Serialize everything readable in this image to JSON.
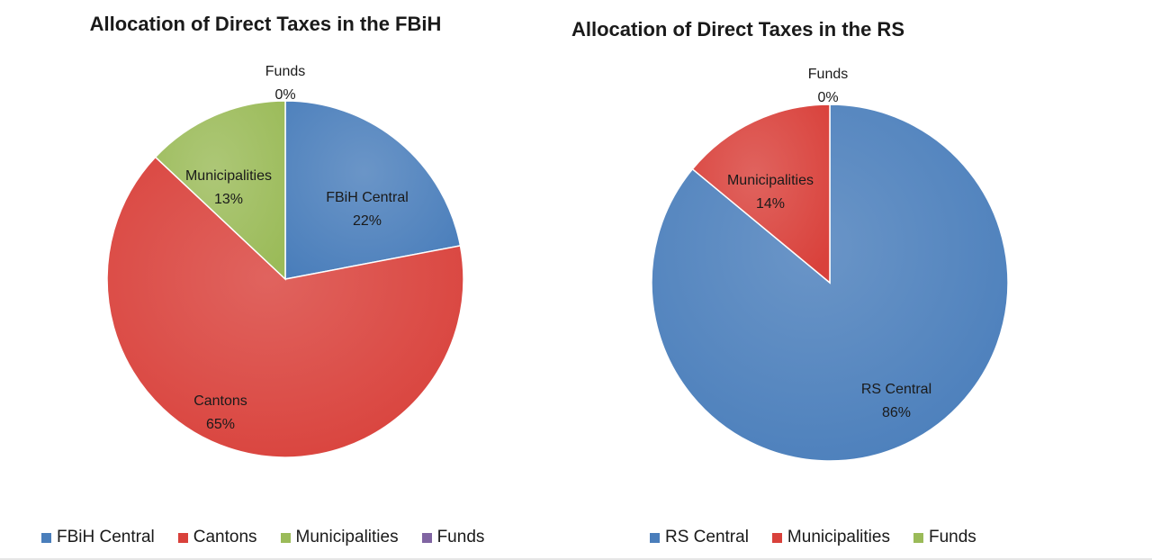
{
  "chart_data": [
    {
      "type": "pie",
      "title": "Allocation of Direct Taxes in the FBiH",
      "categories": [
        "FBiH Central",
        "Cantons",
        "Municipalities",
        "Funds"
      ],
      "values": [
        22,
        65,
        13,
        0
      ],
      "value_labels": [
        "22%",
        "65%",
        "13%",
        "0%"
      ],
      "colors": [
        "#4a7ebb",
        "#d9413b",
        "#9bbb59",
        "#8064a2"
      ],
      "legend_position": "bottom"
    },
    {
      "type": "pie",
      "title": "Allocation of Direct Taxes in the RS",
      "categories": [
        "RS Central",
        "Municipalities",
        "Funds"
      ],
      "values": [
        86,
        14,
        0
      ],
      "value_labels": [
        "86%",
        "14%",
        "0%"
      ],
      "colors": [
        "#4a7ebb",
        "#d9413b",
        "#9bbb59"
      ],
      "legend_position": "bottom"
    }
  ]
}
